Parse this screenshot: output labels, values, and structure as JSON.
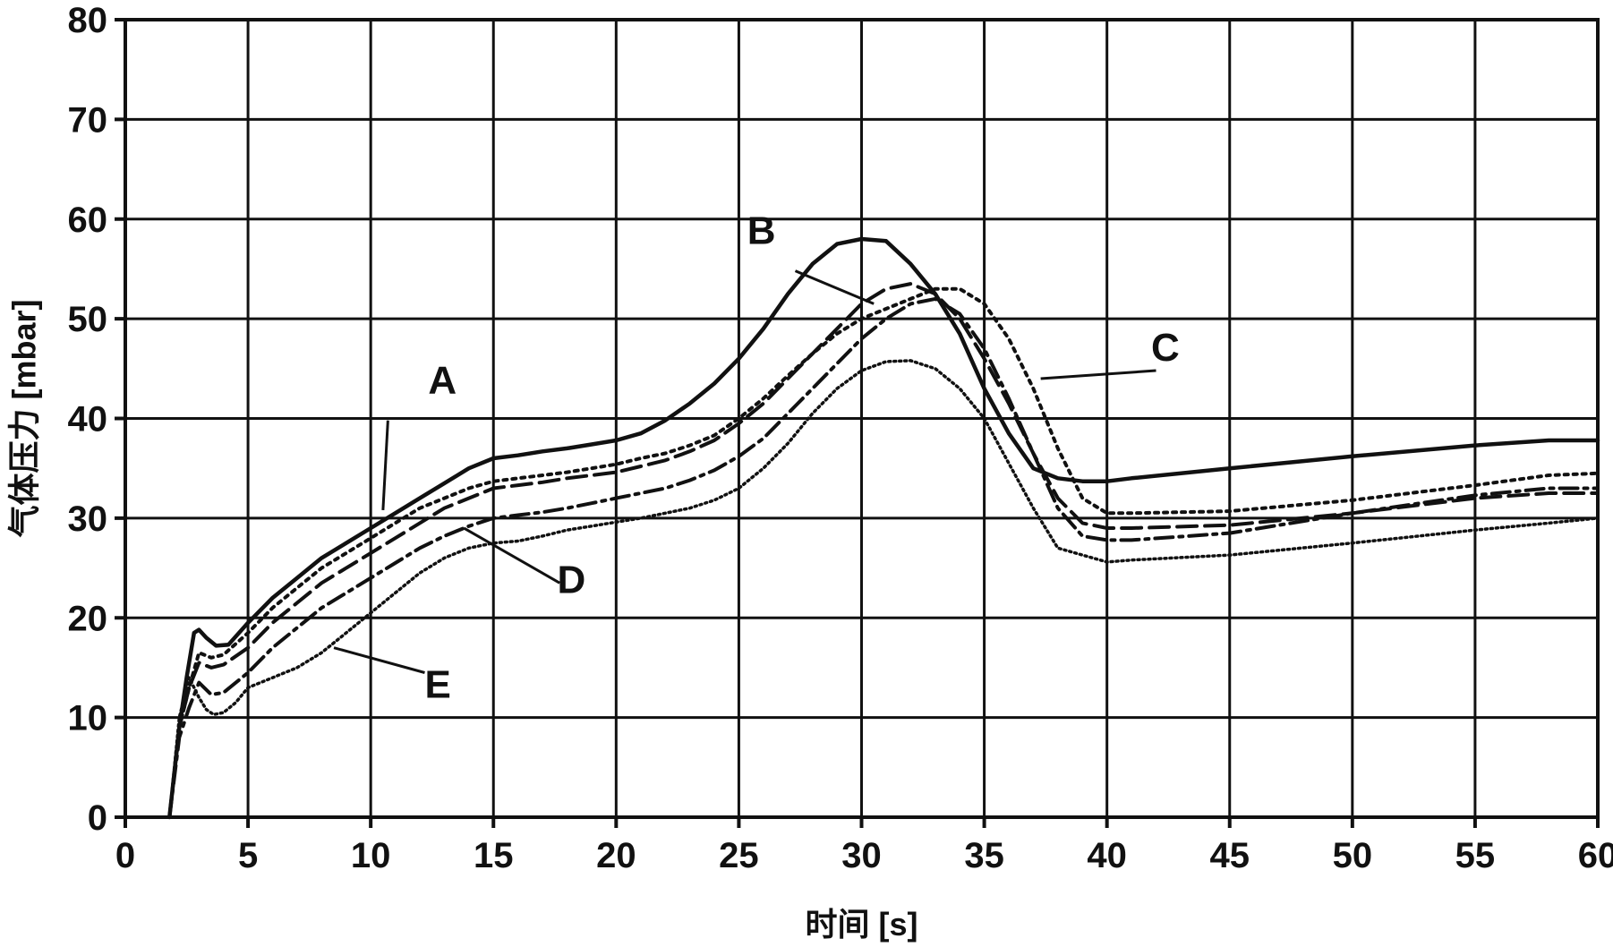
{
  "chart_data": {
    "type": "line",
    "title": "",
    "xlabel": "时间 [s]",
    "ylabel": "气体压力 [mbar]",
    "xlim": [
      0,
      60
    ],
    "ylim": [
      0,
      80
    ],
    "x_ticks": [
      "0",
      "5",
      "10",
      "15",
      "20",
      "25",
      "30",
      "35",
      "40",
      "45",
      "50",
      "55",
      "60"
    ],
    "y_ticks": [
      "0",
      "10",
      "20",
      "30",
      "40",
      "50",
      "60",
      "70",
      "80"
    ],
    "grid": true,
    "legend": "none",
    "series": [
      {
        "name": "A",
        "style": "solid",
        "x": [
          1.8,
          2.2,
          2.5,
          2.8,
          3.0,
          3.3,
          3.7,
          4.2,
          5,
          6,
          7,
          8,
          9,
          10,
          11,
          12,
          13,
          14,
          15,
          16,
          17,
          18,
          19,
          20,
          21,
          22,
          23,
          24,
          25,
          26,
          27,
          28,
          29,
          30,
          31,
          32,
          33,
          34,
          35,
          36,
          37,
          38,
          39,
          40,
          41,
          45,
          50,
          55,
          58,
          60
        ],
        "y": [
          0,
          9,
          14,
          18.5,
          18.8,
          18,
          17.2,
          17.3,
          19.5,
          22,
          24,
          26,
          27.5,
          29,
          30.5,
          32,
          33.5,
          35,
          36,
          36.3,
          36.7,
          37,
          37.4,
          37.8,
          38.5,
          39.8,
          41.5,
          43.5,
          46,
          49,
          52.5,
          55.5,
          57.5,
          58,
          57.8,
          55.5,
          52.5,
          48.5,
          43,
          38.5,
          35,
          34,
          33.7,
          33.7,
          34,
          35,
          36.2,
          37.3,
          37.8,
          37.8
        ]
      },
      {
        "name": "B",
        "style": "long-dash",
        "x": [
          1.8,
          2.2,
          2.6,
          3.0,
          3.5,
          4.0,
          5,
          6,
          7,
          8,
          9,
          10,
          11,
          12,
          13,
          14,
          15,
          16,
          17,
          18,
          19,
          20,
          21,
          22,
          23,
          24,
          25,
          26,
          27,
          28,
          29,
          30,
          31,
          32,
          33,
          34,
          35,
          36,
          37,
          38,
          39,
          40,
          41,
          45,
          50,
          55,
          58,
          60
        ],
        "y": [
          0,
          9,
          13,
          15.5,
          15,
          15.3,
          17,
          19.5,
          21.5,
          23.5,
          25,
          26.5,
          28,
          29.5,
          31,
          32,
          33,
          33.3,
          33.6,
          34,
          34.3,
          34.6,
          35.2,
          35.8,
          36.7,
          37.8,
          39.5,
          41.5,
          44,
          46.5,
          49,
          51.5,
          53,
          53.5,
          52.5,
          50,
          46,
          41.5,
          36.5,
          32,
          29.5,
          29,
          29,
          29.3,
          30.5,
          32,
          32.5,
          32.5
        ]
      },
      {
        "name": "C",
        "style": "dotted",
        "x": [
          1.8,
          2.2,
          2.6,
          3.0,
          3.5,
          4.0,
          5,
          6,
          7,
          8,
          9,
          10,
          11,
          12,
          13,
          14,
          15,
          16,
          17,
          18,
          19,
          20,
          21,
          22,
          23,
          24,
          25,
          26,
          27,
          28,
          29,
          30,
          31,
          32,
          33,
          34,
          35,
          36,
          37,
          38,
          39,
          40,
          41,
          45,
          50,
          55,
          58,
          60
        ],
        "y": [
          0,
          9,
          13,
          16.5,
          16,
          16.3,
          18.5,
          21,
          23,
          25,
          26.5,
          28,
          29.5,
          31,
          32,
          33,
          33.7,
          34,
          34.3,
          34.6,
          35,
          35.4,
          36,
          36.5,
          37.3,
          38.3,
          40,
          42,
          44.3,
          46.5,
          48.5,
          50,
          51,
          52,
          53,
          53,
          51.5,
          48,
          43,
          37,
          32,
          30.5,
          30.5,
          30.7,
          31.8,
          33.3,
          34.3,
          34.5
        ]
      },
      {
        "name": "D",
        "style": "dash-dot",
        "x": [
          1.8,
          2.2,
          2.6,
          3.0,
          3.5,
          4.0,
          5,
          6,
          7,
          8,
          9,
          10,
          11,
          12,
          13,
          14,
          15,
          16,
          17,
          18,
          19,
          20,
          21,
          22,
          23,
          24,
          25,
          26,
          27,
          28,
          29,
          30,
          31,
          32,
          33,
          34,
          35,
          36,
          37,
          38,
          39,
          40,
          41,
          45,
          50,
          55,
          58,
          60
        ],
        "y": [
          0,
          8,
          11,
          13.5,
          12.3,
          12.5,
          14.5,
          17,
          19,
          21,
          22.5,
          24,
          25.5,
          27,
          28.2,
          29.2,
          30,
          30.3,
          30.6,
          31,
          31.5,
          32,
          32.5,
          33,
          33.8,
          34.8,
          36.2,
          38,
          40.5,
          43,
          45.5,
          48,
          50,
          51.5,
          52,
          50.5,
          47,
          42,
          36.5,
          31,
          28.2,
          27.8,
          27.8,
          28.5,
          30.5,
          32.3,
          33,
          33
        ]
      },
      {
        "name": "E",
        "style": "fine-dotted",
        "x": [
          1.8,
          2.2,
          2.6,
          3.0,
          3.3,
          3.6,
          4.0,
          4.5,
          5,
          6,
          7,
          8,
          9,
          10,
          11,
          12,
          13,
          14,
          15,
          16,
          17,
          18,
          19,
          20,
          21,
          22,
          23,
          24,
          25,
          26,
          27,
          28,
          29,
          30,
          31,
          32,
          33,
          34,
          35,
          36,
          37,
          38,
          39,
          40,
          41,
          45,
          50,
          55,
          58,
          60
        ],
        "y": [
          0,
          10,
          14,
          12,
          10.8,
          10.3,
          10.5,
          11.5,
          13,
          14,
          15,
          16.5,
          18.5,
          20.5,
          22.5,
          24.5,
          26,
          27,
          27.5,
          27.7,
          28.2,
          28.8,
          29.2,
          29.6,
          30,
          30.5,
          31,
          31.8,
          33,
          35,
          37.5,
          40.5,
          43,
          44.8,
          45.7,
          45.8,
          45,
          43,
          40,
          35.5,
          31,
          27,
          26.3,
          25.6,
          25.8,
          26.3,
          27.5,
          28.8,
          29.5,
          30
        ]
      }
    ]
  }
}
